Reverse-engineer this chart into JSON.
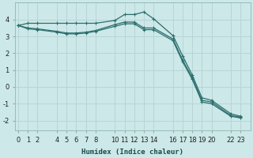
{
  "xlabel": "Humidex (Indice chaleur)",
  "bg_color": "#cce8e8",
  "grid_color": "#b8d4d4",
  "line_color": "#2d6e6e",
  "x_ticks": [
    0,
    1,
    2,
    4,
    5,
    6,
    7,
    8,
    10,
    11,
    12,
    13,
    14,
    16,
    17,
    18,
    19,
    20,
    22,
    23
  ],
  "ylim": [
    -2.6,
    5.0
  ],
  "xlim": [
    -0.3,
    24.0
  ],
  "series1_x": [
    0,
    1,
    2,
    4,
    5,
    6,
    7,
    8,
    10,
    11,
    12,
    13,
    14,
    16,
    17,
    18,
    19,
    20,
    22,
    23
  ],
  "series1_y": [
    3.65,
    3.78,
    3.78,
    3.78,
    3.78,
    3.78,
    3.78,
    3.78,
    3.95,
    4.3,
    4.3,
    4.45,
    4.05,
    3.05,
    1.85,
    0.7,
    -0.65,
    -0.8,
    -1.6,
    -1.75
  ],
  "series2_x": [
    0,
    1,
    2,
    4,
    5,
    6,
    7,
    8,
    10,
    11,
    12,
    13,
    14,
    16,
    17,
    18,
    19,
    20,
    22,
    23
  ],
  "series2_y": [
    3.65,
    3.5,
    3.45,
    3.3,
    3.2,
    3.2,
    3.25,
    3.35,
    3.7,
    3.85,
    3.85,
    3.5,
    3.5,
    2.85,
    1.6,
    0.55,
    -0.8,
    -0.9,
    -1.7,
    -1.8
  ],
  "series3_x": [
    0,
    1,
    2,
    4,
    5,
    6,
    7,
    8,
    10,
    11,
    12,
    13,
    14,
    16,
    17,
    18,
    19,
    20,
    22,
    23
  ],
  "series3_y": [
    3.65,
    3.45,
    3.4,
    3.25,
    3.15,
    3.15,
    3.2,
    3.3,
    3.6,
    3.75,
    3.75,
    3.4,
    3.4,
    2.75,
    1.5,
    0.45,
    -0.9,
    -1.0,
    -1.75,
    -1.85
  ],
  "yticks": [
    -2,
    -1,
    0,
    1,
    2,
    3,
    4
  ],
  "tick_fontsize": 6.0,
  "xlabel_fontsize": 6.5
}
